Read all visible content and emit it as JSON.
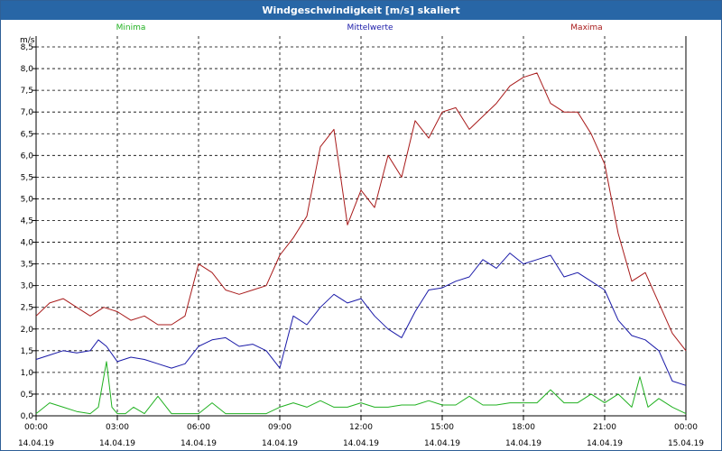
{
  "window": {
    "title": "Windgeschwindigkeit [m/s] skaliert"
  },
  "chart_data": {
    "type": "line",
    "title": "Windgeschwindigkeit [m/s] skaliert",
    "ylabel": "m/s",
    "ylim": [
      0,
      8.75
    ],
    "xlim": [
      0,
      24
    ],
    "y_ticks": [
      0.0,
      0.5,
      1.0,
      1.5,
      2.0,
      2.5,
      3.0,
      3.5,
      4.0,
      4.5,
      5.0,
      5.5,
      6.0,
      6.5,
      7.0,
      7.5,
      8.0,
      8.5
    ],
    "y_tick_labels": [
      "0,0",
      "0,5",
      "1,0",
      "1,5",
      "2,0",
      "2,5",
      "3,0",
      "3,5",
      "4,0",
      "4,5",
      "5,0",
      "5,5",
      "6,0",
      "6,5",
      "7,0",
      "7,5",
      "8,0",
      "8,5"
    ],
    "x_ticks": [
      {
        "hour": 0,
        "time": "00:00",
        "date": "14.04.19"
      },
      {
        "hour": 3,
        "time": "03:00",
        "date": "14.04.19"
      },
      {
        "hour": 6,
        "time": "06:00",
        "date": "14.04.19"
      },
      {
        "hour": 9,
        "time": "09:00",
        "date": "14.04.19"
      },
      {
        "hour": 12,
        "time": "12:00",
        "date": "14.04.19"
      },
      {
        "hour": 15,
        "time": "15:00",
        "date": "14.04.19"
      },
      {
        "hour": 18,
        "time": "18:00",
        "date": "14.04.19"
      },
      {
        "hour": 21,
        "time": "21:00",
        "date": "14.04.19"
      },
      {
        "hour": 24,
        "time": "00:00",
        "date": "15.04.19"
      }
    ],
    "grid": true,
    "legend_position": "top",
    "series": [
      {
        "name": "Minima",
        "color": "#21b121",
        "x": [
          0,
          0.5,
          1,
          1.5,
          2,
          2.3,
          2.6,
          2.8,
          3,
          3.3,
          3.6,
          4,
          4.5,
          5,
          5.5,
          6,
          6.5,
          7,
          7.5,
          8,
          8.5,
          9,
          9.5,
          10,
          10.5,
          11,
          11.5,
          12,
          12.5,
          13,
          13.5,
          14,
          14.5,
          15,
          15.5,
          16,
          16.5,
          17,
          17.5,
          18,
          18.5,
          19,
          19.5,
          20,
          20.5,
          21,
          21.5,
          22,
          22.3,
          22.6,
          23,
          23.5,
          24
        ],
        "y": [
          0.05,
          0.3,
          0.2,
          0.1,
          0.05,
          0.2,
          1.25,
          0.2,
          0.05,
          0.05,
          0.2,
          0.05,
          0.45,
          0.05,
          0.05,
          0.05,
          0.3,
          0.05,
          0.05,
          0.05,
          0.05,
          0.2,
          0.3,
          0.2,
          0.35,
          0.2,
          0.2,
          0.3,
          0.2,
          0.2,
          0.25,
          0.25,
          0.35,
          0.25,
          0.25,
          0.45,
          0.25,
          0.25,
          0.3,
          0.3,
          0.3,
          0.6,
          0.3,
          0.3,
          0.5,
          0.3,
          0.5,
          0.2,
          0.9,
          0.2,
          0.4,
          0.2,
          0.05
        ]
      },
      {
        "name": "Mittelwerte",
        "color": "#1a1aa8",
        "x": [
          0,
          0.5,
          1,
          1.5,
          2,
          2.3,
          2.6,
          3,
          3.5,
          4,
          4.5,
          5,
          5.5,
          6,
          6.5,
          7,
          7.5,
          8,
          8.5,
          9,
          9.5,
          10,
          10.5,
          11,
          11.5,
          12,
          12.5,
          13,
          13.5,
          14,
          14.5,
          15,
          15.5,
          16,
          16.5,
          17,
          17.5,
          18,
          18.5,
          19,
          19.5,
          20,
          20.5,
          21,
          21.5,
          22,
          22.5,
          23,
          23.5,
          24
        ],
        "y": [
          1.3,
          1.4,
          1.5,
          1.45,
          1.5,
          1.75,
          1.6,
          1.25,
          1.35,
          1.3,
          1.2,
          1.1,
          1.2,
          1.6,
          1.75,
          1.8,
          1.6,
          1.65,
          1.5,
          1.1,
          2.3,
          2.1,
          2.5,
          2.8,
          2.6,
          2.7,
          2.3,
          2.0,
          1.8,
          2.4,
          2.9,
          2.95,
          3.1,
          3.2,
          3.6,
          3.4,
          3.75,
          3.5,
          3.6,
          3.7,
          3.2,
          3.3,
          3.1,
          2.9,
          2.2,
          1.85,
          1.75,
          1.5,
          0.8,
          0.7
        ]
      },
      {
        "name": "Maxima",
        "color": "#a81a1a",
        "x": [
          0,
          0.5,
          1,
          1.5,
          2,
          2.5,
          3,
          3.5,
          4,
          4.5,
          5,
          5.5,
          6,
          6.5,
          7,
          7.5,
          8,
          8.5,
          9,
          9.5,
          10,
          10.5,
          11,
          11.5,
          12,
          12.5,
          13,
          13.5,
          14,
          14.5,
          15,
          15.5,
          16,
          16.5,
          17,
          17.5,
          18,
          18.5,
          19,
          19.5,
          20,
          20.5,
          21,
          21.5,
          22,
          22.5,
          23,
          23.5,
          24
        ],
        "y": [
          2.3,
          2.6,
          2.7,
          2.5,
          2.3,
          2.5,
          2.4,
          2.2,
          2.3,
          2.1,
          2.1,
          2.3,
          3.5,
          3.3,
          2.9,
          2.8,
          2.9,
          3.0,
          3.7,
          4.1,
          4.6,
          6.2,
          6.6,
          4.4,
          5.2,
          4.8,
          6.0,
          5.5,
          6.8,
          6.4,
          7.0,
          7.1,
          6.6,
          6.9,
          7.2,
          7.6,
          7.8,
          7.9,
          7.2,
          7.0,
          7.0,
          6.5,
          5.8,
          4.2,
          3.1,
          3.3,
          2.6,
          1.9,
          1.5
        ]
      }
    ]
  }
}
